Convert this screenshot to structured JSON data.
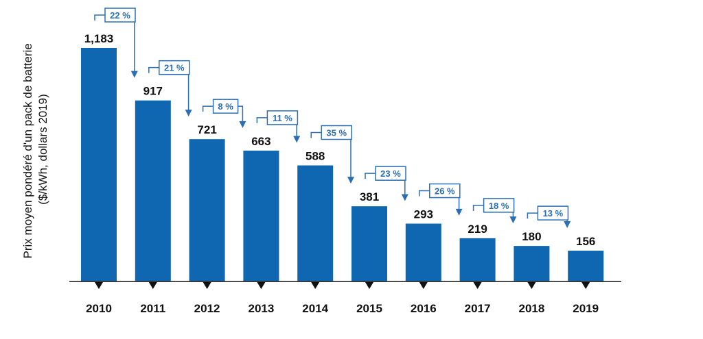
{
  "chart_data": {
    "type": "bar",
    "title": "",
    "xlabel": "",
    "ylabel_lines": [
      "Prix moyen pondéré d'un pack de batterie",
      "($/kWh, dollars 2019)"
    ],
    "categories": [
      "2010",
      "2011",
      "2012",
      "2013",
      "2014",
      "2015",
      "2016",
      "2017",
      "2018",
      "2019"
    ],
    "values": [
      1183,
      917,
      721,
      663,
      588,
      381,
      293,
      219,
      180,
      156
    ],
    "value_labels": [
      "1,183",
      "917",
      "721",
      "663",
      "588",
      "381",
      "293",
      "219",
      "180",
      "156"
    ],
    "annotations": [
      "22 %",
      "21 %",
      "8 %",
      "11 %",
      "35 %",
      "23 %",
      "26 %",
      "18 %",
      "13 %"
    ],
    "ylim": [
      0,
      1183
    ],
    "grid": false,
    "legend": "none",
    "colors": {
      "bar": "#0F67B1",
      "annotation": "#2A6FB5",
      "axis": "#111111",
      "tick_marker": "#111111"
    }
  }
}
